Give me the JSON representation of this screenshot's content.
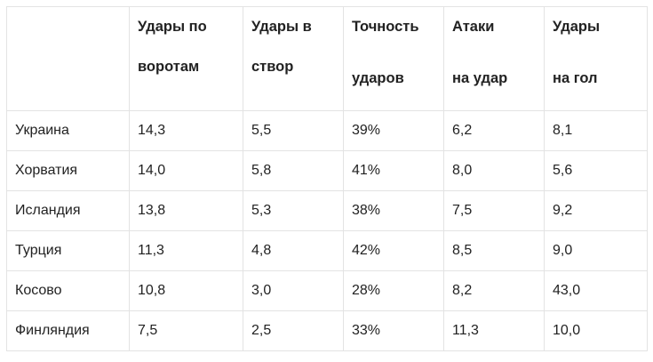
{
  "headers": [
    {
      "line1": "",
      "line2": ""
    },
    {
      "line1": "Удары по",
      "line2": "воротам"
    },
    {
      "line1": "Удары в",
      "line2": "створ"
    },
    {
      "line1": "Точность",
      "line2": "ударов"
    },
    {
      "line1": "Атаки",
      "line2": "на удар"
    },
    {
      "line1": "Удары",
      "line2": "на гол"
    }
  ],
  "rows": [
    [
      "Украина",
      "14,3",
      "5,5",
      "39%",
      "6,2",
      "8,1"
    ],
    [
      "Хорватия",
      "14,0",
      "5,8",
      "41%",
      "8,0",
      "5,6"
    ],
    [
      "Исландия",
      "13,8",
      "5,3",
      "38%",
      "7,5",
      "9,2"
    ],
    [
      "Турция",
      "11,3",
      "4,8",
      "42%",
      "8,5",
      "9,0"
    ],
    [
      "Косово",
      "10,8",
      "3,0",
      "28%",
      "8,2",
      "43,0"
    ],
    [
      "Финляндия",
      "7,5",
      "2,5",
      "33%",
      "11,3",
      "10,0"
    ]
  ]
}
